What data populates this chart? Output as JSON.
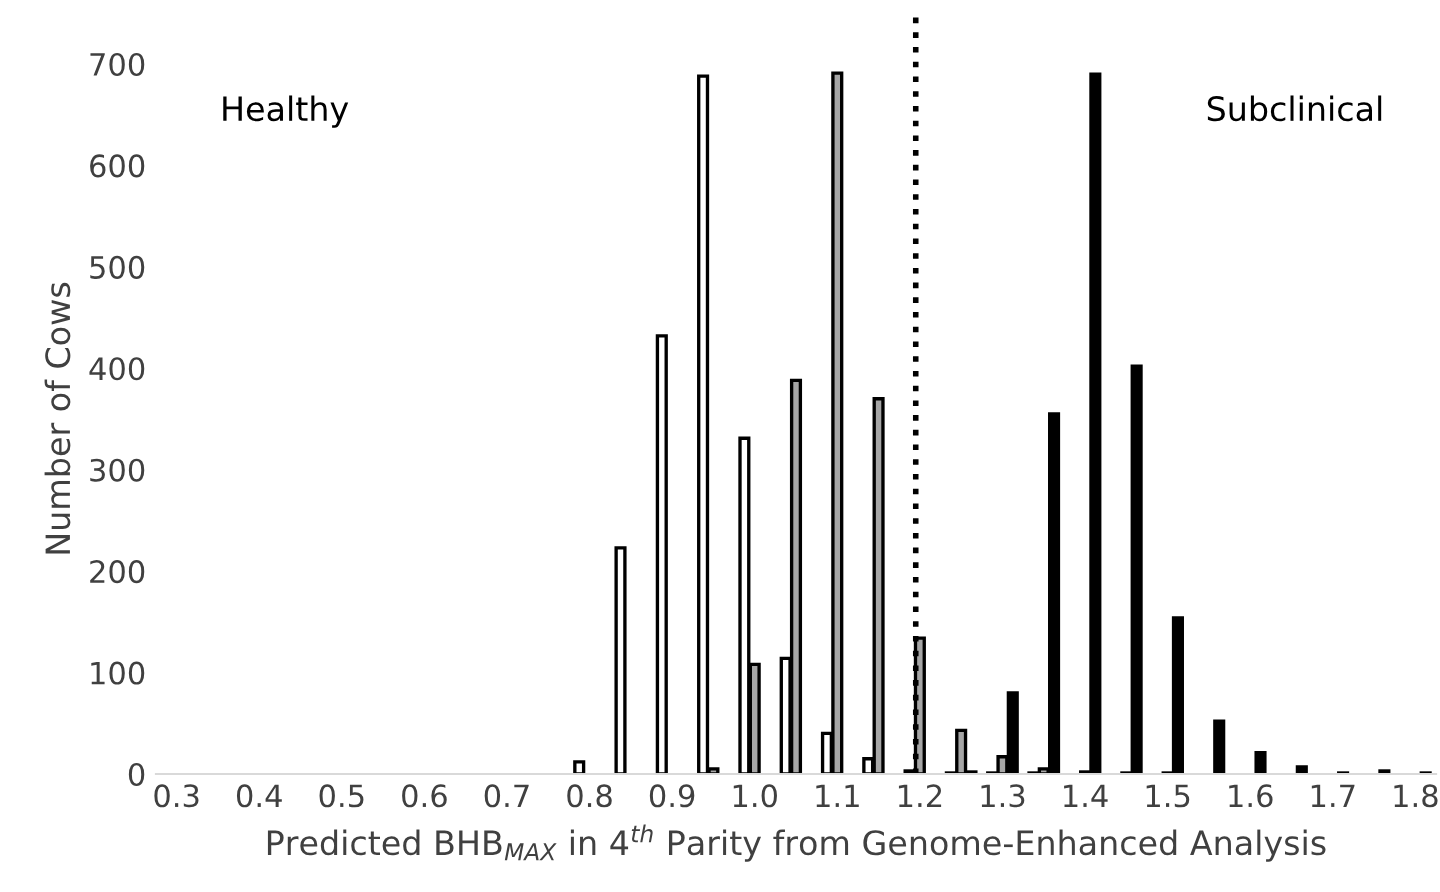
{
  "chart_data": {
    "type": "bar",
    "xlabel": "Predicted BHB$_{MAX}$ in 4$^{th}$ Parity from Genome-Enhanced Analysis",
    "ylabel": "Number of Cows",
    "categories": [
      "0.3",
      null,
      "0.4",
      null,
      "0.5",
      null,
      "0.6",
      null,
      "0.7",
      null,
      "0.8",
      null,
      "0.9",
      null,
      "1.0",
      null,
      "1.1",
      null,
      "1.2",
      null,
      "1.3",
      null,
      "1.4",
      null,
      "1.5",
      null,
      "1.6",
      null,
      "1.7",
      null,
      "1.8"
    ],
    "series": [
      {
        "color": "#ffffff",
        "values": [
          null,
          null,
          null,
          null,
          null,
          null,
          null,
          null,
          null,
          null,
          12,
          223,
          432,
          688,
          331,
          114,
          40,
          15,
          3,
          1,
          1,
          1,
          null,
          null,
          null,
          null,
          null,
          null,
          null,
          null,
          null
        ]
      },
      {
        "color": "#a6a6a6",
        "values": [
          null,
          null,
          null,
          null,
          null,
          null,
          null,
          null,
          null,
          null,
          null,
          null,
          null,
          5,
          108,
          388,
          691,
          370,
          134,
          43,
          17,
          5,
          2,
          1,
          1,
          null,
          null,
          null,
          null,
          null,
          null
        ]
      },
      {
        "color": "#000000",
        "values": [
          null,
          null,
          null,
          null,
          null,
          null,
          null,
          null,
          null,
          null,
          null,
          null,
          null,
          null,
          null,
          null,
          null,
          null,
          null,
          2,
          80,
          355,
          690,
          402,
          154,
          52,
          21,
          7,
          1,
          3,
          1
        ]
      }
    ],
    "ylim": [
      0,
      700
    ],
    "yticks": [
      0,
      100,
      200,
      300,
      400,
      500,
      600,
      700
    ],
    "grid": false,
    "ref_lines": [
      {
        "axis": "x",
        "value": "1.2",
        "line_style": "dotted",
        "color": "#000000"
      }
    ],
    "annotations": [
      "Healthy",
      "Subclinical"
    ]
  }
}
